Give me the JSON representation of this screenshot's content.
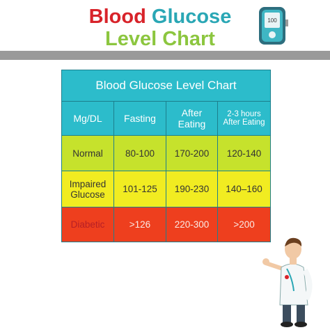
{
  "header": {
    "title_parts": [
      "Blood",
      "Glucose"
    ],
    "subtitle": "Level Chart",
    "meter_reading": "100"
  },
  "table": {
    "caption": "Blood Glucose Level  Chart",
    "columns": [
      "Mg/DL",
      "Fasting",
      "After Eating",
      "2-3 hours After Eating"
    ],
    "rows": [
      [
        "Normal",
        "80-100",
        "170-200",
        "120-140"
      ],
      [
        "Impaired Glucose",
        "101-125",
        "190-230",
        "140–160"
      ],
      [
        "Diabetic",
        ">126",
        "220-300",
        ">200"
      ]
    ]
  }
}
